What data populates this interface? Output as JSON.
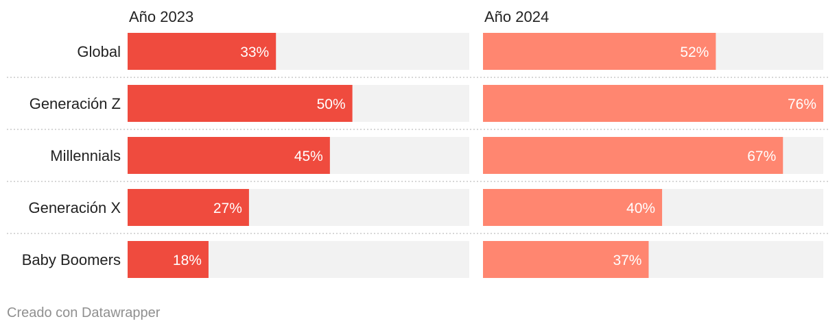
{
  "chart_data": {
    "type": "bar",
    "orientation": "horizontal",
    "categories": [
      "Global",
      "Generación Z",
      "Millennials",
      "Generación X",
      "Baby Boomers"
    ],
    "series": [
      {
        "name": "Año 2023",
        "values": [
          33,
          50,
          45,
          27,
          18
        ],
        "value_labels": [
          "33%",
          "50%",
          "45%",
          "27%",
          "18%"
        ],
        "color": "#ef4b3e"
      },
      {
        "name": "Año 2024",
        "values": [
          52,
          76,
          67,
          40,
          37
        ],
        "value_labels": [
          "52%",
          "76%",
          "67%",
          "40%",
          "37%"
        ],
        "color": "#ff8670"
      }
    ],
    "xlim": [
      0,
      76
    ],
    "unit": "%",
    "background_bar_color": "#f2f2f2",
    "separator_color": "#c8c8c8",
    "grid": false,
    "legend": "none"
  },
  "footer": {
    "text": "Creado con Datawrapper"
  }
}
